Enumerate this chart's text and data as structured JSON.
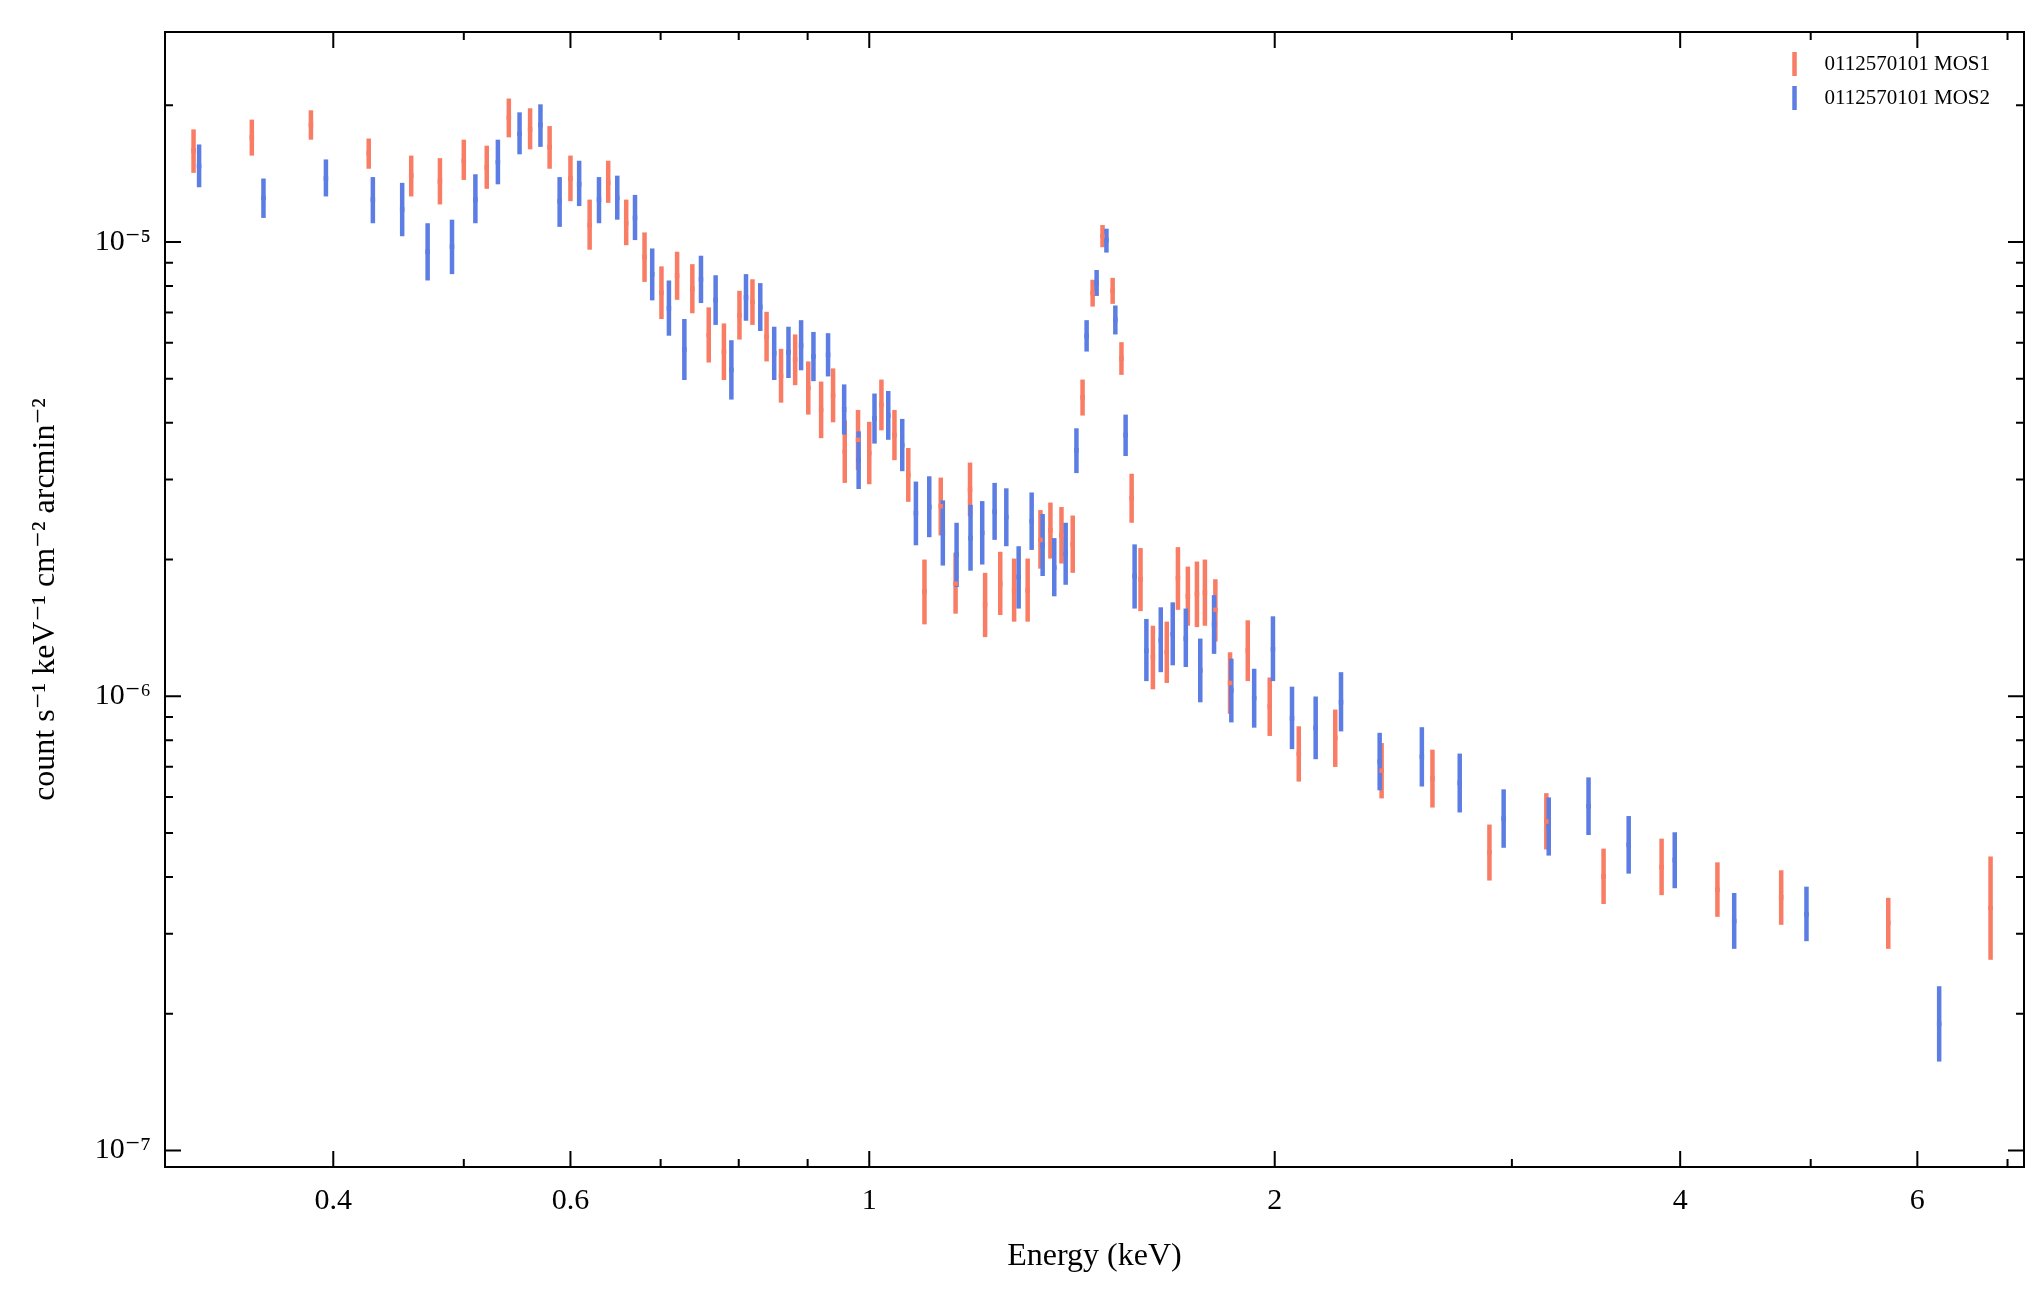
{
  "chart_data": {
    "type": "scatter",
    "xlabel": "Energy (keV)",
    "ylabel": "count s⁻¹ keV⁻¹ cm⁻² arcmin⁻²",
    "log": "xy",
    "legend": "top right",
    "xlim": [
      0.3,
      7.2
    ],
    "xticks": [
      {
        "value": 0.4,
        "label": "0.4"
      },
      {
        "value": 0.5,
        "label": null
      },
      {
        "value": 0.6,
        "label": "0.6"
      },
      {
        "value": 0.7,
        "label": null
      },
      {
        "value": 0.8,
        "label": null
      },
      {
        "value": 0.9,
        "label": null
      },
      {
        "value": 1,
        "label": "1"
      },
      {
        "value": 2,
        "label": "2"
      },
      {
        "value": 3,
        "label": null
      },
      {
        "value": 4,
        "label": "4"
      },
      {
        "value": 5,
        "label": null
      },
      {
        "value": 6,
        "label": "6"
      },
      {
        "value": 7,
        "label": null
      }
    ],
    "ylim": [
      9.2e-08,
      2.9e-05
    ],
    "yticks": [
      {
        "value": 1e-07,
        "label": "10⁻⁷"
      },
      {
        "value": 2e-07,
        "label": null
      },
      {
        "value": 3e-07,
        "label": null
      },
      {
        "value": 4e-07,
        "label": null
      },
      {
        "value": 5e-07,
        "label": null
      },
      {
        "value": 6e-07,
        "label": null
      },
      {
        "value": 7e-07,
        "label": null
      },
      {
        "value": 8e-07,
        "label": null
      },
      {
        "value": 9e-07,
        "label": null
      },
      {
        "value": 1e-06,
        "label": "10⁻⁶"
      },
      {
        "value": 2e-06,
        "label": null
      },
      {
        "value": 3e-06,
        "label": null
      },
      {
        "value": 4e-06,
        "label": null
      },
      {
        "value": 5e-06,
        "label": null
      },
      {
        "value": 6e-06,
        "label": null
      },
      {
        "value": 7e-06,
        "label": null
      },
      {
        "value": 8e-06,
        "label": null
      },
      {
        "value": 9e-06,
        "label": null
      },
      {
        "value": 1e-05,
        "label": "10⁻⁵"
      },
      {
        "value": 2e-05,
        "label": null
      }
    ],
    "series": [
      {
        "name": "0112570101 MOS1",
        "color": "#f97c64",
        "x": [
          0.315,
          0.348,
          0.385,
          0.425,
          0.457,
          0.48,
          0.5,
          0.52,
          0.54,
          0.56,
          0.579,
          0.6,
          0.62,
          0.64,
          0.66,
          0.681,
          0.701,
          0.72,
          0.739,
          0.76,
          0.78,
          0.801,
          0.819,
          0.839,
          0.86,
          0.881,
          0.901,
          0.921,
          0.94,
          0.959,
          0.981,
          1.0,
          1.021,
          1.044,
          1.069,
          1.099,
          1.13,
          1.159,
          1.188,
          1.219,
          1.251,
          1.281,
          1.311,
          1.34,
          1.363,
          1.389,
          1.416,
          1.44,
          1.465,
          1.49,
          1.516,
          1.539,
          1.566,
          1.59,
          1.624,
          1.663,
          1.695,
          1.724,
          1.751,
          1.775,
          1.807,
          1.853,
          1.91,
          1.983,
          2.084,
          2.218,
          2.401,
          2.619,
          2.887,
          3.182,
          3.509,
          3.875,
          4.263,
          4.754,
          5.709,
          6.8
        ],
        "values": [
          1.59e-05,
          1.7e-05,
          1.81e-05,
          1.57e-05,
          1.4e-05,
          1.36e-05,
          1.51e-05,
          1.46e-05,
          1.88e-05,
          1.77e-05,
          1.62e-05,
          1.38e-05,
          1.09e-05,
          1.35e-05,
          1.1e-05,
          9.26e-06,
          7.73e-06,
          8.43e-06,
          7.89e-06,
          6.24e-06,
          5.73e-06,
          6.9e-06,
          7.38e-06,
          6.19e-06,
          5.07e-06,
          5.51e-06,
          4.77e-06,
          4.27e-06,
          4.6e-06,
          3.46e-06,
          3.67e-06,
          3.43e-06,
          4.38e-06,
          3.76e-06,
          3.07e-06,
          1.7e-06,
          2.62e-06,
          1.77e-06,
          2.85e-06,
          1.59e-06,
          1.77e-06,
          1.71e-06,
          1.71e-06,
          2.21e-06,
          2.32e-06,
          2.26e-06,
          2.16e-06,
          4.55e-06,
          7.72e-06,
          1.03e-05,
          7.81e-06,
          5.54e-06,
          2.73e-06,
          1.81e-06,
          1.22e-06,
          1.25e-06,
          1.82e-06,
          1.66e-06,
          1.68e-06,
          1.69e-06,
          1.55e-06,
          1.07e-06,
          1.26e-06,
          9.5e-07,
          7.47e-07,
          8.09e-07,
          6.86e-07,
          6.59e-07,
          4.53e-07,
          5.3e-07,
          4.01e-07,
          4.21e-07,
          3.75e-07,
          3.61e-07,
          3.17e-07,
          3.42e-07
        ],
        "errors": [
          [
            1.42e-05,
            1.77e-05
          ],
          [
            1.55e-05,
            1.86e-05
          ],
          [
            1.68e-05,
            1.95e-05
          ],
          [
            1.45e-05,
            1.69e-05
          ],
          [
            1.26e-05,
            1.55e-05
          ],
          [
            1.21e-05,
            1.53e-05
          ],
          [
            1.37e-05,
            1.68e-05
          ],
          [
            1.31e-05,
            1.63e-05
          ],
          [
            1.7e-05,
            2.07e-05
          ],
          [
            1.6e-05,
            1.97e-05
          ],
          [
            1.45e-05,
            1.8e-05
          ],
          [
            1.23e-05,
            1.55e-05
          ],
          [
            9.62e-06,
            1.24e-05
          ],
          [
            1.22e-05,
            1.51e-05
          ],
          [
            9.84e-06,
            1.24e-05
          ],
          [
            8.17e-06,
            1.05e-05
          ],
          [
            6.77e-06,
            8.84e-06
          ],
          [
            7.46e-06,
            9.52e-06
          ],
          [
            6.97e-06,
            8.94e-06
          ],
          [
            5.43e-06,
            7.18e-06
          ],
          [
            4.97e-06,
            6.62e-06
          ],
          [
            6.1e-06,
            7.81e-06
          ],
          [
            6.57e-06,
            8.28e-06
          ],
          [
            5.46e-06,
            7.02e-06
          ],
          [
            4.43e-06,
            5.82e-06
          ],
          [
            4.84e-06,
            6.26e-06
          ],
          [
            4.17e-06,
            5.46e-06
          ],
          [
            3.7e-06,
            4.93e-06
          ],
          [
            4.01e-06,
            5.27e-06
          ],
          [
            2.95e-06,
            4.05e-06
          ],
          [
            3.15e-06,
            4.27e-06
          ],
          [
            2.93e-06,
            4.02e-06
          ],
          [
            3.85e-06,
            4.98e-06
          ],
          [
            3.31e-06,
            4.27e-06
          ],
          [
            2.68e-06,
            3.52e-06
          ],
          [
            1.44e-06,
            2e-06
          ],
          [
            2.26e-06,
            3.03e-06
          ],
          [
            1.52e-06,
            2.07e-06
          ],
          [
            2.49e-06,
            3.27e-06
          ],
          [
            1.35e-06,
            1.87e-06
          ],
          [
            1.51e-06,
            2.08e-06
          ],
          [
            1.46e-06,
            2.01e-06
          ],
          [
            1.46e-06,
            2.01e-06
          ],
          [
            1.91e-06,
            2.57e-06
          ],
          [
            2.01e-06,
            2.67e-06
          ],
          [
            1.96e-06,
            2.61e-06
          ],
          [
            1.87e-06,
            2.5e-06
          ],
          [
            4.15e-06,
            4.98e-06
          ],
          [
            7.21e-06,
            8.26e-06
          ],
          [
            9.74e-06,
            1.09e-05
          ],
          [
            7.31e-06,
            8.34e-06
          ],
          [
            5.1e-06,
            6.02e-06
          ],
          [
            2.41e-06,
            3.09e-06
          ],
          [
            1.54e-06,
            2.12e-06
          ],
          [
            1.036e-06,
            1.43e-06
          ],
          [
            1.07e-06,
            1.46e-06
          ],
          [
            1.55e-06,
            2.13e-06
          ],
          [
            1.43e-06,
            1.93e-06
          ],
          [
            1.42e-06,
            1.98e-06
          ],
          [
            1.43e-06,
            2e-06
          ],
          [
            1.32e-06,
            1.81e-06
          ],
          [
            9.15e-07,
            1.25e-06
          ],
          [
            1.08e-06,
            1.47e-06
          ],
          [
            8.18e-07,
            1.1e-06
          ],
          [
            6.49e-07,
            8.59e-07
          ],
          [
            6.99e-07,
            9.35e-07
          ],
          [
            5.96e-07,
            7.89e-07
          ],
          [
            5.69e-07,
            7.63e-07
          ],
          [
            3.93e-07,
            5.22e-07
          ],
          [
            4.6e-07,
            6.12e-07
          ],
          [
            3.49e-07,
            4.62e-07
          ],
          [
            3.65e-07,
            4.86e-07
          ],
          [
            3.27e-07,
            4.31e-07
          ],
          [
            3.14e-07,
            4.14e-07
          ],
          [
            2.78e-07,
            3.6e-07
          ],
          [
            2.63e-07,
            4.44e-07
          ]
        ]
      },
      {
        "name": "0112570101 MOS2",
        "color": "#5b7de4",
        "x": [
          0.318,
          0.355,
          0.395,
          0.428,
          0.45,
          0.47,
          0.49,
          0.51,
          0.53,
          0.55,
          0.57,
          0.589,
          0.609,
          0.63,
          0.65,
          0.67,
          0.69,
          0.71,
          0.729,
          0.75,
          0.769,
          0.79,
          0.81,
          0.83,
          0.85,
          0.871,
          0.89,
          0.909,
          0.932,
          0.958,
          0.982,
          1.009,
          1.033,
          1.058,
          1.083,
          1.108,
          1.134,
          1.161,
          1.189,
          1.213,
          1.239,
          1.264,
          1.291,
          1.32,
          1.345,
          1.372,
          1.399,
          1.425,
          1.45,
          1.475,
          1.5,
          1.523,
          1.55,
          1.574,
          1.606,
          1.646,
          1.68,
          1.718,
          1.761,
          1.803,
          1.857,
          1.931,
          1.994,
          2.06,
          2.145,
          2.24,
          2.393,
          2.572,
          2.744,
          2.958,
          3.195,
          3.42,
          3.663,
          3.963,
          4.387,
          4.964,
          6.228
        ],
        "values": [
          1.47e-05,
          1.25e-05,
          1.38e-05,
          1.24e-05,
          1.18e-05,
          9.52e-06,
          9.77e-06,
          1.24e-05,
          1.5e-05,
          1.73e-05,
          1.81e-05,
          1.23e-05,
          1.34e-05,
          1.24e-05,
          1.25e-05,
          1.13e-05,
          8.49e-06,
          7.15e-06,
          5.8e-06,
          8.28e-06,
          7.45e-06,
          5.23e-06,
          7.55e-06,
          7.2e-06,
          5.69e-06,
          5.72e-06,
          5.92e-06,
          5.6e-06,
          5.65e-06,
          4.28e-06,
          3.31e-06,
          4.09e-06,
          4.15e-06,
          3.57e-06,
          2.53e-06,
          2.61e-06,
          2.29e-06,
          2.05e-06,
          2.23e-06,
          2.29e-06,
          2.55e-06,
          2.48e-06,
          1.83e-06,
          2.43e-06,
          2.15e-06,
          1.92e-06,
          2.06e-06,
          3.48e-06,
          6.21e-06,
          8.13e-06,
          1.01e-05,
          6.74e-06,
          3.76e-06,
          1.84e-06,
          1.26e-06,
          1.33e-06,
          1.37e-06,
          1.34e-06,
          1.14e-06,
          1.44e-06,
          1.03e-06,
          9.91e-07,
          1.27e-06,
          8.94e-07,
          8.52e-07,
          9.71e-07,
          7.18e-07,
          7.36e-07,
          6.45e-07,
          5.38e-07,
          5.16e-07,
          5.73e-07,
          4.71e-07,
          4.36e-07,
          3.2e-07,
          3.31e-07,
          1.9e-07
        ],
        "errors": [
          [
            1.32e-05,
            1.64e-05
          ],
          [
            1.13e-05,
            1.38e-05
          ],
          [
            1.26e-05,
            1.52e-05
          ],
          [
            1.1e-05,
            1.39e-05
          ],
          [
            1.03e-05,
            1.35e-05
          ],
          [
            8.23e-06,
            1.1e-05
          ],
          [
            8.5e-06,
            1.12e-05
          ],
          [
            1.1e-05,
            1.41e-05
          ],
          [
            1.34e-05,
            1.68e-05
          ],
          [
            1.56e-05,
            1.93e-05
          ],
          [
            1.62e-05,
            2.01e-05
          ],
          [
            1.08e-05,
            1.39e-05
          ],
          [
            1.2e-05,
            1.51e-05
          ],
          [
            1.1e-05,
            1.39e-05
          ],
          [
            1.12e-05,
            1.4e-05
          ],
          [
            1.01e-05,
            1.27e-05
          ],
          [
            7.44e-06,
            9.68e-06
          ],
          [
            6.22e-06,
            8.23e-06
          ],
          [
            4.97e-06,
            6.77e-06
          ],
          [
            7.34e-06,
            9.33e-06
          ],
          [
            6.57e-06,
            8.45e-06
          ],
          [
            4.5e-06,
            6.08e-06
          ],
          [
            6.71e-06,
            8.5e-06
          ],
          [
            6.37e-06,
            8.12e-06
          ],
          [
            4.97e-06,
            6.51e-06
          ],
          [
            5.02e-06,
            6.51e-06
          ],
          [
            5.22e-06,
            6.73e-06
          ],
          [
            4.94e-06,
            6.34e-06
          ],
          [
            5.06e-06,
            6.3e-06
          ],
          [
            3.77e-06,
            4.86e-06
          ],
          [
            2.86e-06,
            3.83e-06
          ],
          [
            3.6e-06,
            4.64e-06
          ],
          [
            3.67e-06,
            4.7e-06
          ],
          [
            3.13e-06,
            4.08e-06
          ],
          [
            2.15e-06,
            2.97e-06
          ],
          [
            2.24e-06,
            3.05e-06
          ],
          [
            1.94e-06,
            2.7e-06
          ],
          [
            1.74e-06,
            2.41e-06
          ],
          [
            1.89e-06,
            2.64e-06
          ],
          [
            1.95e-06,
            2.69e-06
          ],
          [
            2.21e-06,
            2.95e-06
          ],
          [
            2.14e-06,
            2.87e-06
          ],
          [
            1.56e-06,
            2.14e-06
          ],
          [
            2.1e-06,
            2.81e-06
          ],
          [
            1.84e-06,
            2.52e-06
          ],
          [
            1.66e-06,
            2.23e-06
          ],
          [
            1.76e-06,
            2.41e-06
          ],
          [
            3.1e-06,
            3.89e-06
          ],
          [
            5.74e-06,
            6.73e-06
          ],
          [
            7.61e-06,
            8.68e-06
          ],
          [
            9.48e-06,
            1.07e-05
          ],
          [
            6.26e-06,
            7.25e-06
          ],
          [
            3.38e-06,
            4.17e-06
          ],
          [
            1.56e-06,
            2.16e-06
          ],
          [
            1.08e-06,
            1.48e-06
          ],
          [
            1.13e-06,
            1.57e-06
          ],
          [
            1.17e-06,
            1.61e-06
          ],
          [
            1.16e-06,
            1.56e-06
          ],
          [
            9.7e-07,
            1.34e-06
          ],
          [
            1.24e-06,
            1.67e-06
          ],
          [
            8.76e-07,
            1.21e-06
          ],
          [
            8.53e-07,
            1.15e-06
          ],
          [
            1.08e-06,
            1.5e-06
          ],
          [
            7.65e-07,
            1.05e-06
          ],
          [
            7.27e-07,
            9.99e-07
          ],
          [
            8.37e-07,
            1.13e-06
          ],
          [
            6.21e-07,
            8.31e-07
          ],
          [
            6.33e-07,
            8.55e-07
          ],
          [
            5.55e-07,
            7.48e-07
          ],
          [
            4.64e-07,
            6.24e-07
          ],
          [
            4.46e-07,
            5.99e-07
          ],
          [
            4.95e-07,
            6.63e-07
          ],
          [
            4.07e-07,
            5.45e-07
          ],
          [
            3.78e-07,
            5.02e-07
          ],
          [
            2.78e-07,
            3.69e-07
          ],
          [
            2.89e-07,
            3.81e-07
          ],
          [
            1.57e-07,
            2.3e-07
          ]
        ]
      }
    ]
  }
}
